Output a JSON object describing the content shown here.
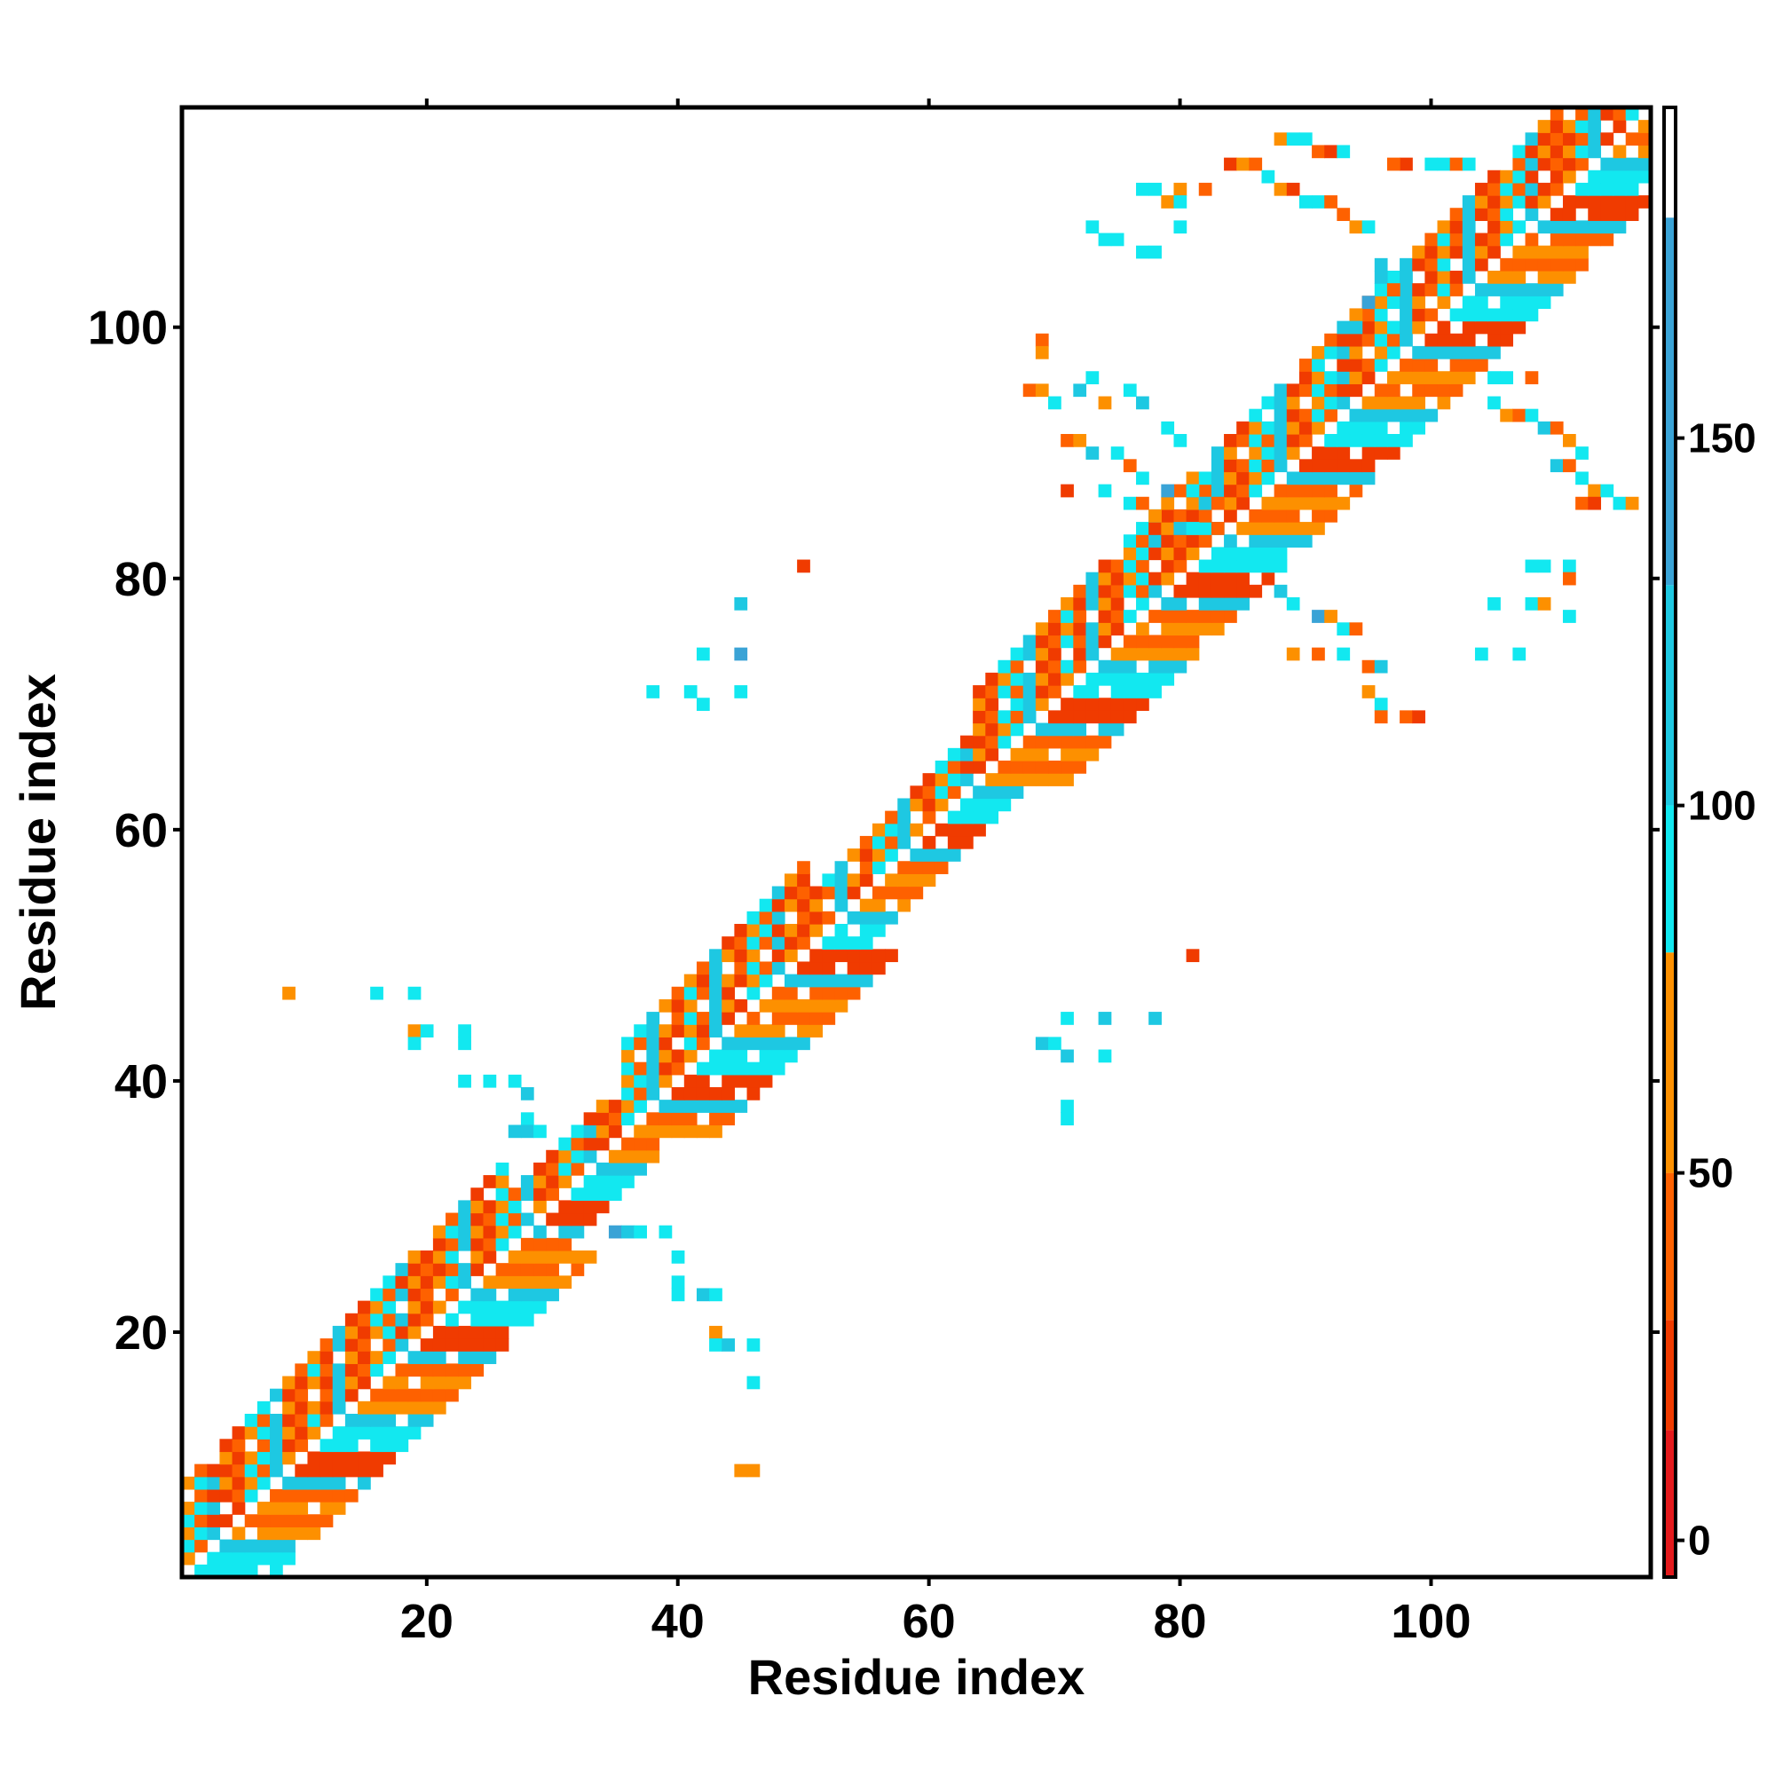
{
  "chart_data": {
    "type": "heatmap",
    "title": "",
    "xlabel": "Residue index",
    "ylabel": "Residue index",
    "xlim": [
      0.5,
      117.5
    ],
    "ylim": [
      0.5,
      117.5
    ],
    "x_ticks": [
      20,
      40,
      60,
      80,
      100
    ],
    "y_ticks": [
      20,
      40,
      60,
      80,
      100
    ],
    "x_tick_labels": [
      "20",
      "40",
      "60",
      "80",
      "100"
    ],
    "y_tick_labels": [
      "20",
      "40",
      "60",
      "80",
      "100"
    ],
    "colorbar": {
      "range": [
        -5,
        195
      ],
      "ticks": [
        0,
        50,
        100,
        150
      ],
      "tick_labels": [
        "0",
        "50",
        "100",
        "150"
      ],
      "bands": [
        {
          "from": -5,
          "to": 15,
          "color": "#e31a1c"
        },
        {
          "from": 15,
          "to": 30,
          "color": "#f03b00"
        },
        {
          "from": 30,
          "to": 50,
          "color": "#fe6100"
        },
        {
          "from": 50,
          "to": 80,
          "color": "#fd9000"
        },
        {
          "from": 80,
          "to": 100,
          "color": "#12e8f0"
        },
        {
          "from": 100,
          "to": 130,
          "color": "#1ec8e2"
        },
        {
          "from": 130,
          "to": 180,
          "color": "#3aa3d6"
        },
        {
          "from": 180,
          "to": 195,
          "color": "#4f81b8"
        }
      ]
    },
    "value_colors": [
      {
        "max": 15,
        "color": "#e31a1c"
      },
      {
        "max": 30,
        "color": "#f03b00"
      },
      {
        "max": 50,
        "color": "#fe6100"
      },
      {
        "max": 80,
        "color": "#fd9000"
      },
      {
        "max": 100,
        "color": "#12e8f0"
      },
      {
        "max": 130,
        "color": "#1ec8e2"
      },
      {
        "max": 180,
        "color": "#3aa3d6"
      },
      {
        "max": 999,
        "color": "#4f81b8"
      }
    ],
    "diagonal_band": {
      "from_residue": 1,
      "to_residue": 117,
      "max_offset": 7,
      "note_free_of_geometry": true
    },
    "cells": [
      [
        100,
        113,
        90
      ],
      [
        101,
        113,
        90
      ],
      [
        102,
        113,
        40
      ],
      [
        103,
        113,
        90
      ],
      [
        98,
        113,
        20
      ],
      [
        97,
        113,
        40
      ],
      [
        88,
        115,
        60
      ],
      [
        89,
        115,
        90
      ],
      [
        90,
        115,
        90
      ],
      [
        91,
        114,
        40
      ],
      [
        92,
        114,
        20
      ],
      [
        93,
        114,
        90
      ],
      [
        84,
        113,
        20
      ],
      [
        85,
        113,
        60
      ],
      [
        86,
        113,
        40
      ],
      [
        87,
        112,
        90
      ],
      [
        88,
        111,
        60
      ],
      [
        89,
        111,
        20
      ],
      [
        90,
        110,
        90
      ],
      [
        91,
        110,
        90
      ],
      [
        92,
        110,
        40
      ],
      [
        93,
        109,
        40
      ],
      [
        94,
        108,
        60
      ],
      [
        95,
        108,
        90
      ],
      [
        77,
        111,
        90
      ],
      [
        78,
        111,
        90
      ],
      [
        80,
        111,
        60
      ],
      [
        82,
        111,
        40
      ],
      [
        79,
        110,
        60
      ],
      [
        80,
        110,
        90
      ],
      [
        74,
        107,
        90
      ],
      [
        75,
        107,
        90
      ],
      [
        77,
        106,
        90
      ],
      [
        78,
        106,
        90
      ],
      [
        80,
        108,
        90
      ],
      [
        73,
        108,
        90
      ],
      [
        96,
        105,
        110
      ],
      [
        96,
        104,
        120
      ],
      [
        97,
        103,
        40
      ],
      [
        95,
        102,
        140
      ],
      [
        94,
        101,
        60
      ],
      [
        94,
        100,
        110
      ],
      [
        69,
        99,
        40
      ],
      [
        69,
        98,
        60
      ],
      [
        68,
        95,
        40
      ],
      [
        69,
        95,
        60
      ],
      [
        70,
        94,
        90
      ],
      [
        72,
        95,
        120
      ],
      [
        73,
        96,
        90
      ],
      [
        74,
        94,
        60
      ],
      [
        76,
        95,
        90
      ],
      [
        77,
        94,
        120
      ],
      [
        79,
        92,
        90
      ],
      [
        80,
        91,
        90
      ],
      [
        71,
        91,
        40
      ],
      [
        72,
        91,
        60
      ],
      [
        73,
        90,
        120
      ],
      [
        75,
        90,
        90
      ],
      [
        76,
        89,
        40
      ],
      [
        77,
        88,
        90
      ],
      [
        79,
        87,
        140
      ],
      [
        81,
        87,
        90
      ],
      [
        82,
        86,
        120
      ],
      [
        83,
        86,
        40
      ],
      [
        71,
        87,
        20
      ],
      [
        74,
        87,
        90
      ],
      [
        76,
        86,
        90
      ],
      [
        77,
        86,
        40
      ],
      [
        78,
        85,
        60
      ],
      [
        80,
        84,
        120
      ],
      [
        81,
        84,
        90
      ],
      [
        83,
        84,
        40
      ],
      [
        105,
        96,
        90
      ],
      [
        106,
        96,
        90
      ],
      [
        108,
        96,
        40
      ],
      [
        105,
        94,
        90
      ],
      [
        106,
        93,
        60
      ],
      [
        107,
        93,
        40
      ],
      [
        108,
        93,
        90
      ],
      [
        109,
        92,
        120
      ],
      [
        110,
        92,
        40
      ],
      [
        111,
        91,
        60
      ],
      [
        112,
        90,
        90
      ],
      [
        110,
        89,
        120
      ],
      [
        111,
        89,
        40
      ],
      [
        112,
        88,
        90
      ],
      [
        113,
        87,
        60
      ],
      [
        114,
        87,
        90
      ],
      [
        112,
        86,
        40
      ],
      [
        113,
        86,
        20
      ],
      [
        115,
        86,
        90
      ],
      [
        116,
        86,
        60
      ],
      [
        108,
        81,
        90
      ],
      [
        109,
        81,
        90
      ],
      [
        111,
        81,
        90
      ],
      [
        111,
        80,
        40
      ],
      [
        105,
        78,
        90
      ],
      [
        108,
        78,
        90
      ],
      [
        109,
        78,
        60
      ],
      [
        111,
        77,
        90
      ],
      [
        104,
        74,
        90
      ],
      [
        107,
        74,
        90
      ],
      [
        88,
        79,
        120
      ],
      [
        89,
        78,
        90
      ],
      [
        91,
        77,
        140
      ],
      [
        92,
        77,
        60
      ],
      [
        93,
        76,
        90
      ],
      [
        94,
        76,
        40
      ],
      [
        89,
        74,
        60
      ],
      [
        91,
        74,
        40
      ],
      [
        93,
        74,
        90
      ],
      [
        95,
        73,
        40
      ],
      [
        96,
        73,
        120
      ],
      [
        95,
        71,
        60
      ],
      [
        96,
        70,
        90
      ],
      [
        96,
        69,
        40
      ],
      [
        98,
        69,
        40
      ],
      [
        99,
        69,
        20
      ],
      [
        50,
        81,
        20
      ],
      [
        45,
        78,
        120
      ],
      [
        42,
        74,
        90
      ],
      [
        45,
        74,
        140
      ],
      [
        38,
        71,
        90
      ],
      [
        41,
        71,
        90
      ],
      [
        42,
        70,
        90
      ],
      [
        45,
        71,
        90
      ],
      [
        9,
        47,
        60
      ],
      [
        16,
        47,
        90
      ],
      [
        19,
        47,
        90
      ],
      [
        19,
        44,
        60
      ],
      [
        20,
        44,
        90
      ],
      [
        23,
        44,
        90
      ],
      [
        19,
        43,
        90
      ],
      [
        23,
        43,
        90
      ],
      [
        23,
        40,
        90
      ],
      [
        25,
        40,
        90
      ],
      [
        27,
        40,
        90
      ],
      [
        28,
        39,
        120
      ],
      [
        28,
        37,
        90
      ],
      [
        27,
        36,
        110
      ],
      [
        28,
        36,
        110
      ],
      [
        29,
        36,
        90
      ],
      [
        35,
        28,
        140
      ],
      [
        36,
        28,
        110
      ],
      [
        37,
        28,
        90
      ],
      [
        39,
        28,
        90
      ],
      [
        40,
        26,
        90
      ],
      [
        40,
        24,
        90
      ],
      [
        40,
        23,
        90
      ],
      [
        42,
        23,
        110
      ],
      [
        43,
        23,
        90
      ],
      [
        43,
        20,
        60
      ],
      [
        43,
        19,
        90
      ],
      [
        44,
        19,
        120
      ],
      [
        46,
        19,
        90
      ],
      [
        46,
        16,
        90
      ],
      [
        45,
        9,
        60
      ],
      [
        46,
        9,
        60
      ],
      [
        81,
        50,
        20
      ],
      [
        71,
        45,
        90
      ],
      [
        74,
        45,
        120
      ],
      [
        78,
        45,
        110
      ],
      [
        69,
        43,
        110
      ],
      [
        70,
        43,
        90
      ],
      [
        71,
        42,
        110
      ],
      [
        74,
        42,
        90
      ],
      [
        71,
        38,
        90
      ],
      [
        71,
        37,
        90
      ]
    ]
  }
}
